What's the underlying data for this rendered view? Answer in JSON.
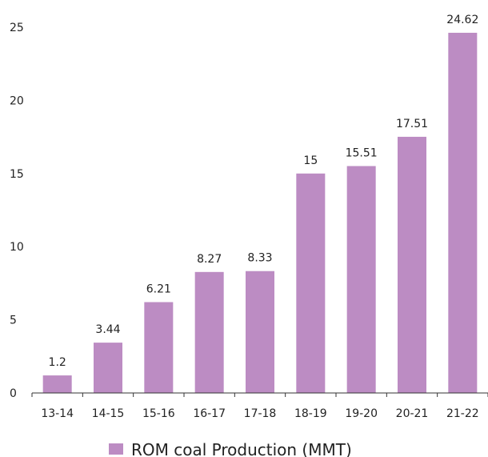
{
  "chart_data": {
    "type": "bar",
    "categories": [
      "13-14",
      "14-15",
      "15-16",
      "16-17",
      "17-18",
      "18-19",
      "19-20",
      "20-21",
      "21-22"
    ],
    "series": [
      {
        "name": "ROM coal Production (MMT)",
        "values": [
          1.2,
          3.44,
          6.21,
          8.27,
          8.33,
          15,
          15.51,
          17.51,
          24.62
        ],
        "labels": [
          "1.2",
          "3.44",
          "6.21",
          "8.27",
          "8.33",
          "15",
          "15.51",
          "17.51",
          "24.62"
        ]
      }
    ],
    "title": "",
    "xlabel": "",
    "ylabel": "",
    "ylim": [
      0,
      25
    ],
    "yticks": [
      0,
      5,
      10,
      15,
      20,
      25
    ],
    "ytick_labels": [
      "0",
      "5",
      "10",
      "15",
      "20",
      "25"
    ],
    "grid": false,
    "legend": "bottom-center",
    "bar_color": "#bc8cc3",
    "axis_color": "#333333"
  }
}
